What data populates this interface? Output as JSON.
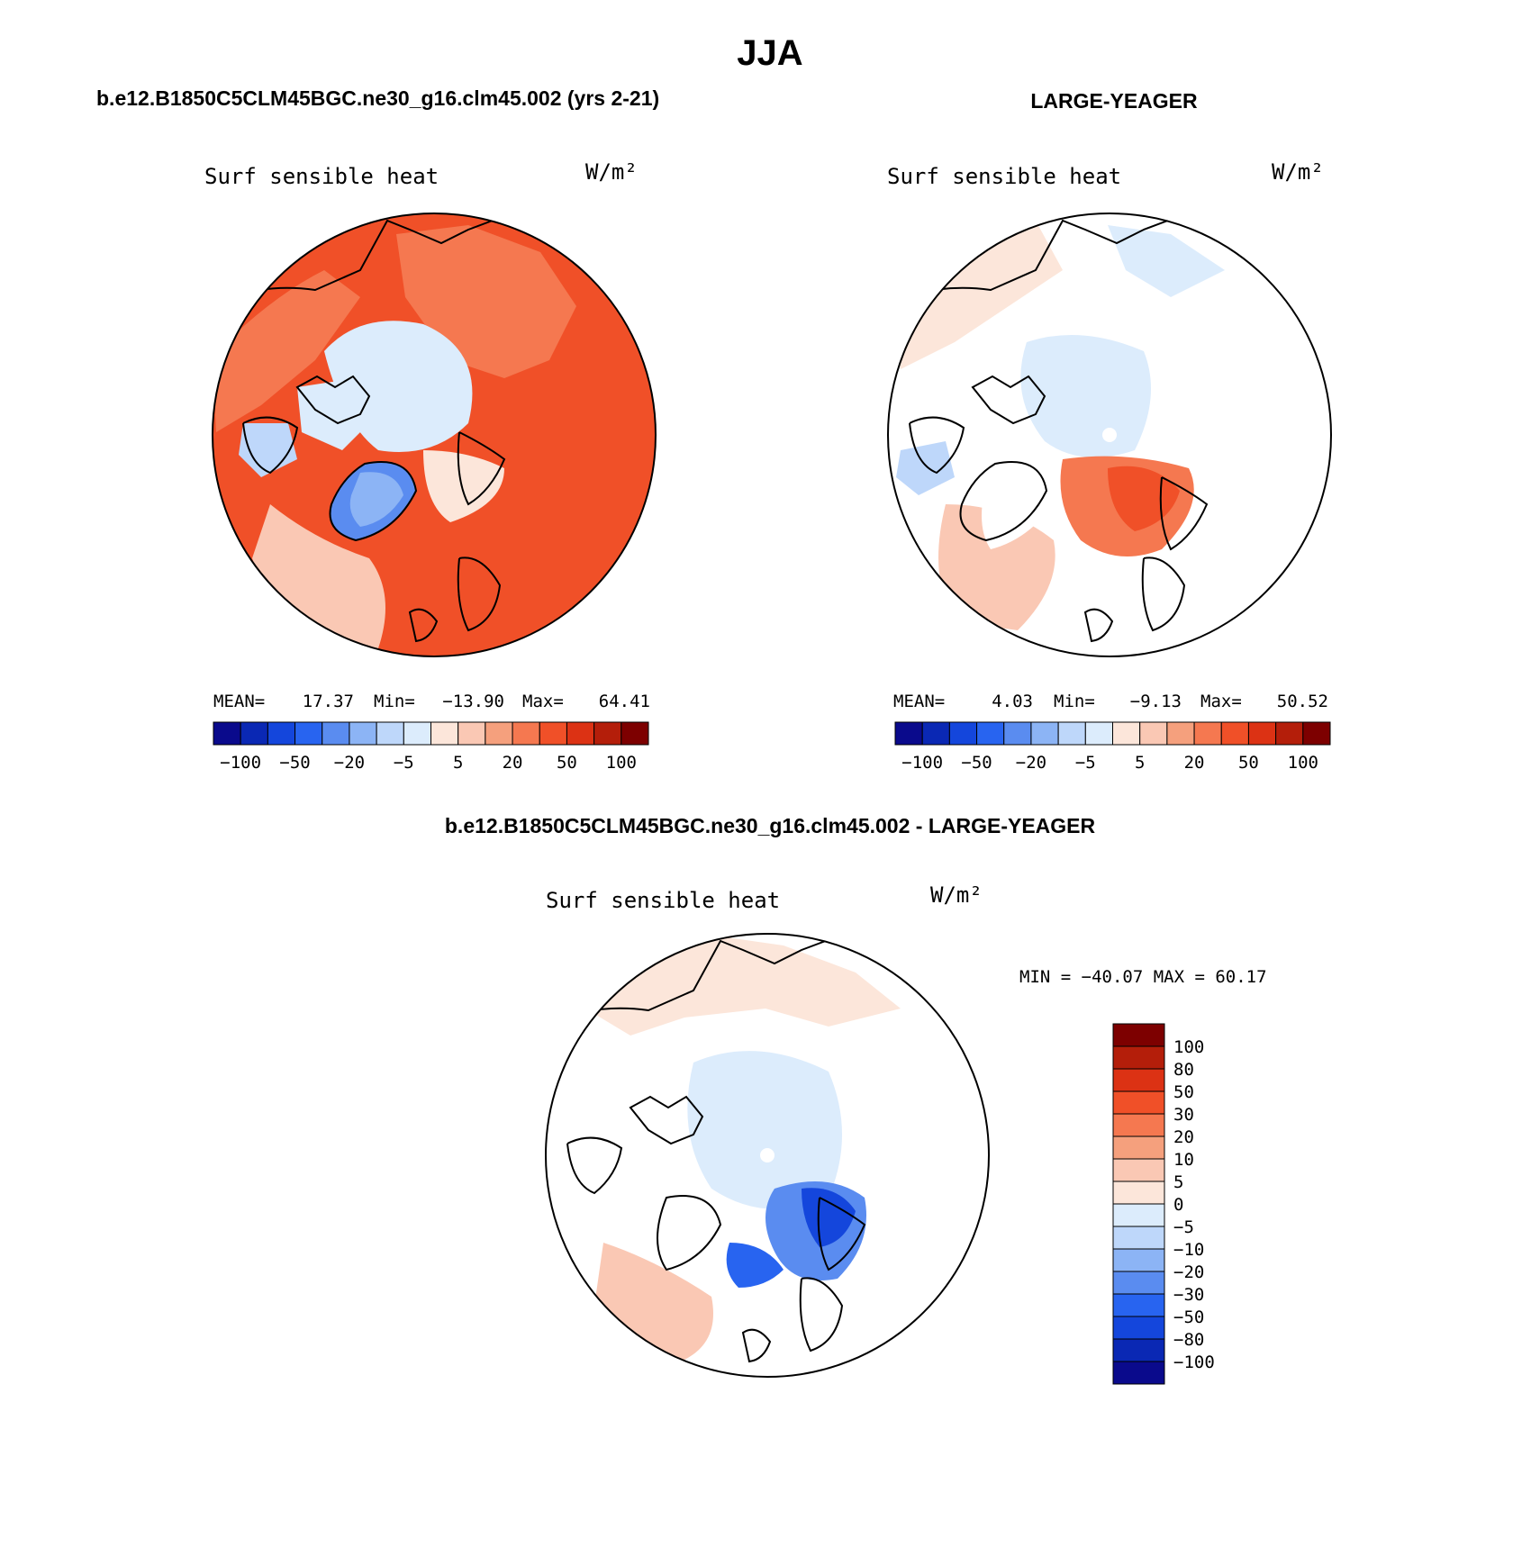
{
  "page": {
    "title": "JJA"
  },
  "palette": [
    "#0a0a8c",
    "#0a28b4",
    "#1446dc",
    "#2864f0",
    "#5a8cf0",
    "#8cb4f5",
    "#bed7fa",
    "#dcecfc",
    "#fce6da",
    "#fac8b4",
    "#f5a07d",
    "#f57850",
    "#f05028",
    "#dc3214",
    "#b41e0a",
    "#7d0000"
  ],
  "colors": {
    "land_outline": "#000000",
    "ocean_masked": "#ffffff",
    "circle_border": "#000000"
  },
  "panels": {
    "left": {
      "header": "b.e12.B1850C5CLM45BGC.ne30_g16.clm45.002 (yrs 2-21)",
      "variable": "Surf sensible heat",
      "units": "W/m²",
      "stats": {
        "mean_label": "MEAN=",
        "mean": "17.37",
        "min_label": "Min=",
        "min": "−13.90",
        "max_label": "Max=",
        "max": "64.41"
      },
      "colorbar_labels": [
        "−100",
        "−50",
        "−20",
        "−5",
        "5",
        "20",
        "50",
        "100"
      ]
    },
    "right": {
      "header": "LARGE-YEAGER",
      "variable": "Surf sensible heat",
      "units": "W/m²",
      "stats": {
        "mean_label": "MEAN=",
        "mean": "4.03",
        "min_label": "Min=",
        "min": "−9.13",
        "max_label": "Max=",
        "max": "50.52"
      },
      "colorbar_labels": [
        "−100",
        "−50",
        "−20",
        "−5",
        "5",
        "20",
        "50",
        "100"
      ]
    },
    "diff": {
      "header": "b.e12.B1850C5CLM45BGC.ne30_g16.clm45.002 - LARGE-YEAGER",
      "variable": "Surf sensible heat",
      "units": "W/m²",
      "minmax": "MIN = −40.07 MAX =  60.17",
      "colorbar_labels": [
        "100",
        "80",
        "50",
        "30",
        "20",
        "10",
        "5",
        "0",
        "−5",
        "−10",
        "−20",
        "−30",
        "−50",
        "−80",
        "−100"
      ]
    }
  }
}
